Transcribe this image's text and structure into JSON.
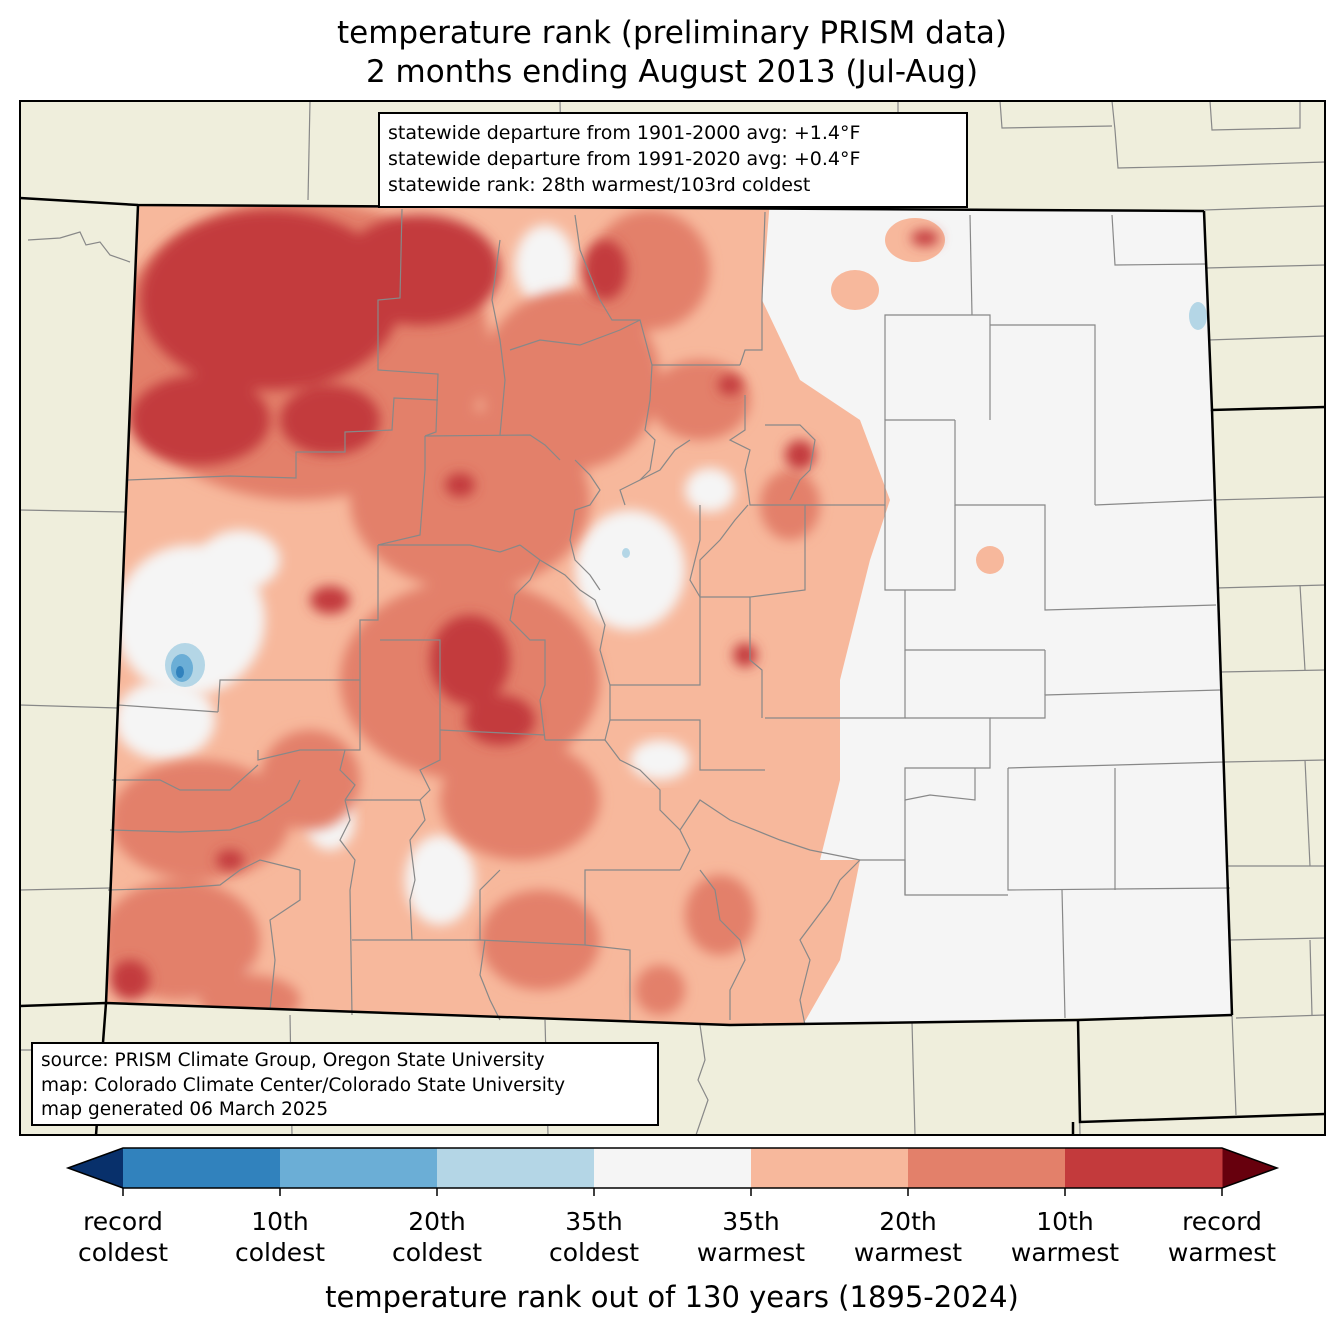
{
  "title": {
    "line1": "temperature rank (preliminary PRISM data)",
    "line2": "2 months ending August 2013 (Jul-Aug)"
  },
  "stats": {
    "lines": [
      "statewide departure from 1901-2000 avg: +1.4°F",
      "statewide departure from 1991-2020 avg: +0.4°F",
      "statewide rank: 28th warmest/103rd coldest"
    ]
  },
  "source": {
    "lines": [
      "source: PRISM Climate Group, Oregon State University",
      "map: Colorado Climate Center/Colorado State University",
      "map generated 06 March 2025"
    ]
  },
  "colorbar": {
    "label": "temperature rank out of 130 years (1895-2024)",
    "ticks": [
      {
        "line1": "record",
        "line2": "coldest"
      },
      {
        "line1": "10th",
        "line2": "coldest"
      },
      {
        "line1": "20th",
        "line2": "coldest"
      },
      {
        "line1": "35th",
        "line2": "coldest"
      },
      {
        "line1": "35th",
        "line2": "warmest"
      },
      {
        "line1": "20th",
        "line2": "warmest"
      },
      {
        "line1": "10th",
        "line2": "warmest"
      },
      {
        "line1": "record",
        "line2": "warmest"
      }
    ],
    "colors": {
      "below_min": "#08306b",
      "record_to_10th_coldest": "#3182bd",
      "10th_to_20th_coldest": "#6baed6",
      "20th_to_35th_coldest": "#b4d6e6",
      "near_normal": "#f5f5f5",
      "35th_to_20th_warmest": "#f7b89c",
      "20th_to_10th_warmest": "#e3806a",
      "10th_to_record_warmest": "#c33a3c",
      "above_max": "#67000d"
    }
  },
  "map_colors": {
    "land_outside": "#efeedc",
    "county_lines": "#888888",
    "state_lines": "#000000"
  }
}
